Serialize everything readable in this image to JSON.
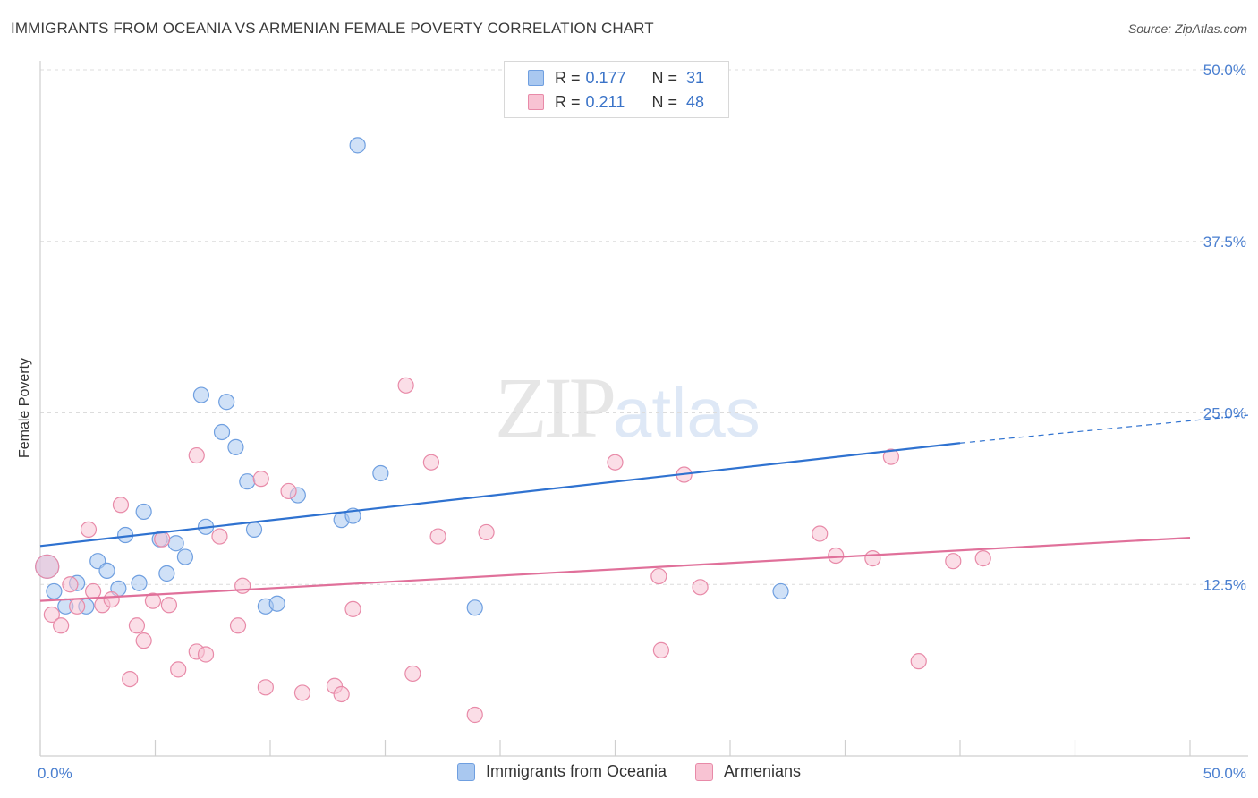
{
  "chart_data": {
    "type": "scatter",
    "title": "IMMIGRANTS FROM OCEANIA VS ARMENIAN FEMALE POVERTY CORRELATION CHART",
    "source": "Source: ZipAtlas.com",
    "ylabel": "Female Poverty",
    "xlim": [
      0,
      50
    ],
    "ylim": [
      0,
      50
    ],
    "y_ticks": [
      "50.0%",
      "37.5%",
      "25.0%",
      "12.5%"
    ],
    "y_tick_values": [
      50,
      37.5,
      25,
      12.5
    ],
    "x_ticks": [
      "0.0%",
      "50.0%"
    ],
    "x_tick_values": [
      0,
      50
    ],
    "watermark": {
      "zip": "ZIP",
      "atlas": "atlas"
    },
    "series": [
      {
        "name": "Immigrants from Oceania",
        "color": "#a9c8f0",
        "stroke": "#6f9fe0",
        "line_color": "#2f72d0",
        "R": "0.177",
        "N": "31",
        "trend": {
          "x0": 0,
          "y0": 15.3,
          "x1": 40,
          "y1": 22.8,
          "dash_x1": 50,
          "dash_y1": 24.7
        },
        "points": [
          [
            0.3,
            13.8
          ],
          [
            0.6,
            12.0
          ],
          [
            1.1,
            10.9
          ],
          [
            1.6,
            12.6
          ],
          [
            2.0,
            10.9
          ],
          [
            2.5,
            14.2
          ],
          [
            2.9,
            13.5
          ],
          [
            3.4,
            12.2
          ],
          [
            3.7,
            16.1
          ],
          [
            4.3,
            12.6
          ],
          [
            4.5,
            17.8
          ],
          [
            5.2,
            15.8
          ],
          [
            5.5,
            13.3
          ],
          [
            5.9,
            15.5
          ],
          [
            6.3,
            14.5
          ],
          [
            7.0,
            26.3
          ],
          [
            7.2,
            16.7
          ],
          [
            7.9,
            23.6
          ],
          [
            8.1,
            25.8
          ],
          [
            8.5,
            22.5
          ],
          [
            9.0,
            20.0
          ],
          [
            9.3,
            16.5
          ],
          [
            9.8,
            10.9
          ],
          [
            10.3,
            11.1
          ],
          [
            11.2,
            19.0
          ],
          [
            13.1,
            17.2
          ],
          [
            13.6,
            17.5
          ],
          [
            13.8,
            44.5
          ],
          [
            14.8,
            20.6
          ],
          [
            18.9,
            10.8
          ],
          [
            32.2,
            12.0
          ]
        ]
      },
      {
        "name": "Armenians",
        "color": "#f8c3d3",
        "stroke": "#e88aa8",
        "line_color": "#e0709a",
        "R": "0.211",
        "N": "48",
        "trend": {
          "x0": 0,
          "y0": 11.3,
          "x1": 50,
          "y1": 15.9
        },
        "points": [
          [
            0.3,
            13.8
          ],
          [
            0.5,
            10.3
          ],
          [
            0.9,
            9.5
          ],
          [
            1.3,
            12.5
          ],
          [
            1.6,
            10.9
          ],
          [
            2.1,
            16.5
          ],
          [
            2.3,
            12.0
          ],
          [
            2.7,
            11.0
          ],
          [
            3.1,
            11.4
          ],
          [
            3.5,
            18.3
          ],
          [
            3.9,
            5.6
          ],
          [
            4.2,
            9.5
          ],
          [
            4.5,
            8.4
          ],
          [
            4.9,
            11.3
          ],
          [
            5.3,
            15.8
          ],
          [
            5.6,
            11.0
          ],
          [
            6.0,
            6.3
          ],
          [
            6.8,
            7.6
          ],
          [
            6.8,
            21.9
          ],
          [
            7.2,
            7.4
          ],
          [
            7.8,
            16.0
          ],
          [
            8.6,
            9.5
          ],
          [
            8.8,
            12.4
          ],
          [
            9.6,
            20.2
          ],
          [
            9.8,
            5.0
          ],
          [
            10.8,
            19.3
          ],
          [
            11.4,
            4.6
          ],
          [
            12.8,
            5.1
          ],
          [
            13.1,
            4.5
          ],
          [
            13.6,
            10.7
          ],
          [
            15.9,
            27.0
          ],
          [
            16.2,
            6.0
          ],
          [
            17.0,
            21.4
          ],
          [
            17.3,
            16.0
          ],
          [
            18.9,
            3.0
          ],
          [
            19.4,
            16.3
          ],
          [
            25.0,
            21.4
          ],
          [
            26.9,
            13.1
          ],
          [
            27.0,
            7.7
          ],
          [
            28.0,
            20.5
          ],
          [
            28.7,
            12.3
          ],
          [
            33.9,
            16.2
          ],
          [
            34.6,
            14.6
          ],
          [
            36.2,
            14.4
          ],
          [
            37.0,
            21.8
          ],
          [
            38.2,
            6.9
          ],
          [
            39.7,
            14.2
          ],
          [
            41.0,
            14.4
          ]
        ]
      }
    ],
    "legend": {
      "r_label": "R =",
      "n_label": "N ="
    }
  }
}
